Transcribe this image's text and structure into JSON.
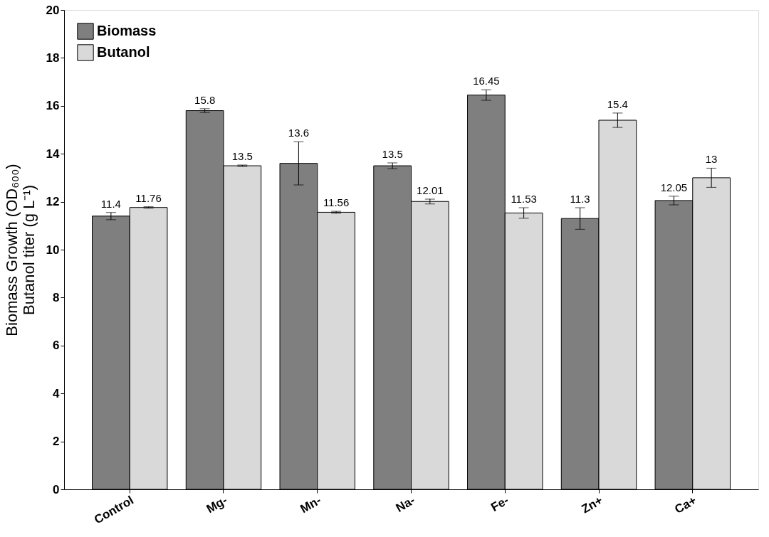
{
  "chart_data": {
    "type": "bar",
    "ylabel": "Biomass Growth (OD₆₀₀)\nButanol titer (g L⁻¹)",
    "categories": [
      "Control",
      "Mg-",
      "Mn-",
      "Na-",
      "Fe-",
      "Zn+",
      "Ca+"
    ],
    "series": [
      {
        "name": "Biomass",
        "color": "#7f7f7f",
        "values": [
          11.4,
          15.8,
          13.6,
          13.5,
          16.45,
          11.3,
          12.05
        ],
        "errors": [
          0.15,
          0.08,
          0.9,
          0.12,
          0.22,
          0.45,
          0.18
        ]
      },
      {
        "name": "Butanol",
        "color": "#d9d9d9",
        "values": [
          11.76,
          13.5,
          11.56,
          12.01,
          11.53,
          15.4,
          13
        ],
        "errors": [
          0.03,
          0.03,
          0.04,
          0.1,
          0.22,
          0.3,
          0.4
        ]
      }
    ],
    "ylim": [
      0,
      20
    ],
    "yticks": [
      0,
      2,
      4,
      6,
      8,
      10,
      12,
      14,
      16,
      18,
      20
    ],
    "grid": false,
    "legend": "top left",
    "data_labels": true
  }
}
